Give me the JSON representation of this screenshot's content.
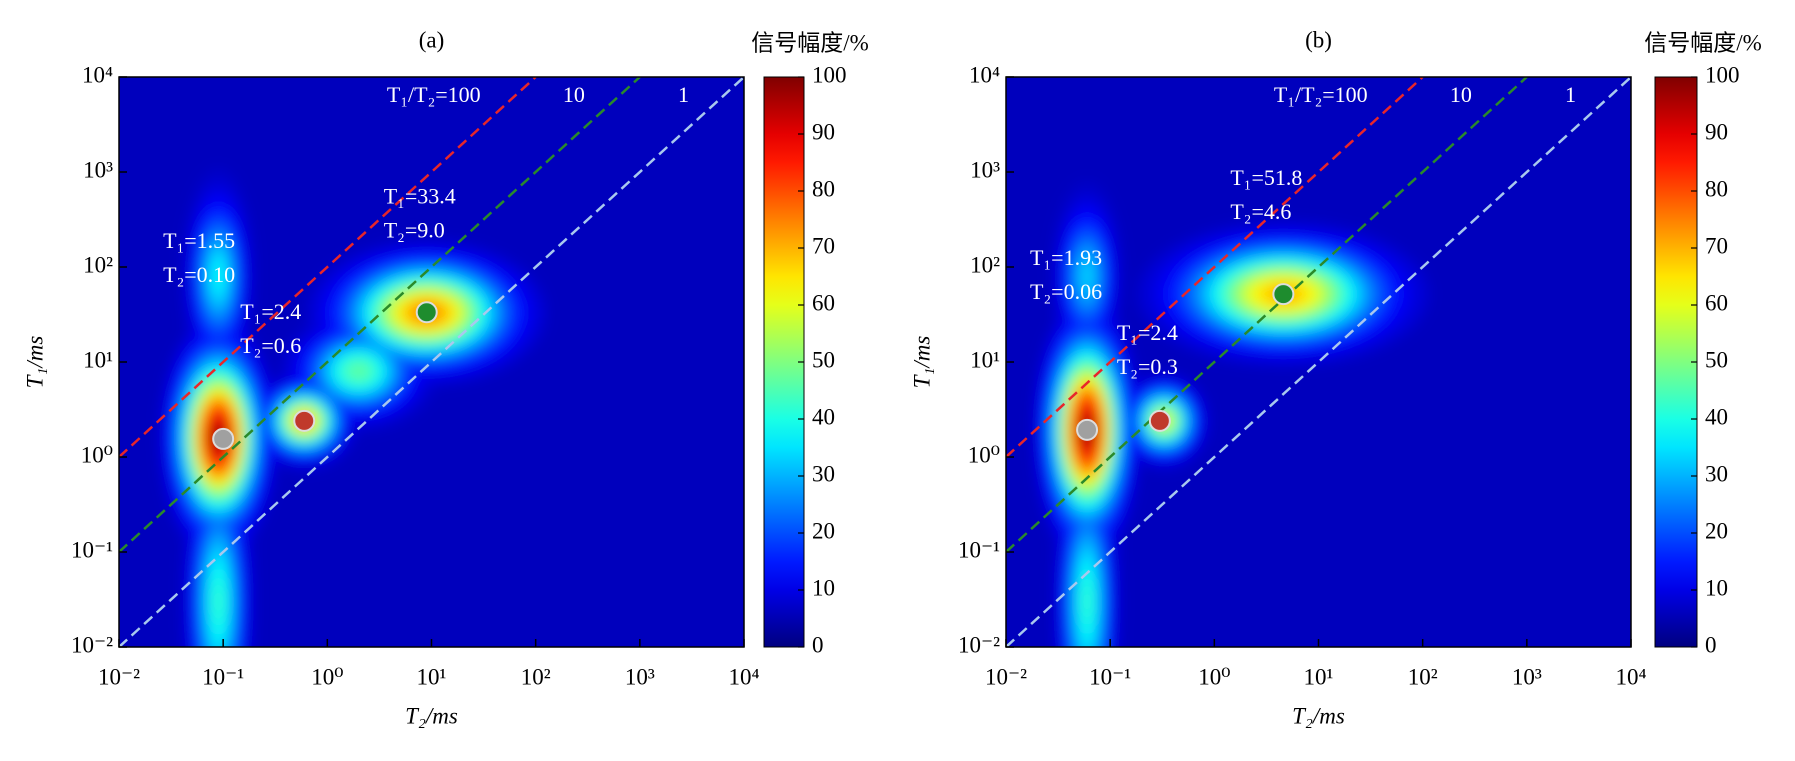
{
  "chart_data": [
    {
      "type": "heatmap",
      "title": "(a)",
      "xlabel": "T₂/ms",
      "ylabel": "T₁/ms",
      "xscale": "log",
      "yscale": "log",
      "xlim": [
        0.01,
        10000
      ],
      "ylim": [
        0.01,
        10000
      ],
      "xticks": [
        {
          "value": 0.01,
          "label": "10⁻²"
        },
        {
          "value": 0.1,
          "label": "10⁻¹"
        },
        {
          "value": 1,
          "label": "10⁰"
        },
        {
          "value": 10,
          "label": "10¹"
        },
        {
          "value": 100,
          "label": "10²"
        },
        {
          "value": 1000,
          "label": "10³"
        },
        {
          "value": 10000,
          "label": "10⁴"
        }
      ],
      "yticks": [
        {
          "value": 0.01,
          "label": "10⁻²"
        },
        {
          "value": 0.1,
          "label": "10⁻¹"
        },
        {
          "value": 1,
          "label": "10⁰"
        },
        {
          "value": 10,
          "label": "10¹"
        },
        {
          "value": 100,
          "label": "10²"
        },
        {
          "value": 1000,
          "label": "10³"
        },
        {
          "value": 10000,
          "label": "10⁴"
        }
      ],
      "colorbar": {
        "title": "信号幅度/%",
        "colormap": "jet",
        "clim": [
          0,
          100
        ],
        "ticks": [
          0,
          10,
          20,
          30,
          40,
          50,
          60,
          70,
          80,
          90,
          100
        ]
      },
      "peaks": [
        {
          "t2": 0.09,
          "t1": 0.03,
          "amplitude": 40,
          "sigma_t2": 0.14,
          "sigma_t1": 0.7
        },
        {
          "t2": 0.09,
          "t1": 80,
          "amplitude": 35,
          "sigma_t2": 0.14,
          "sigma_t1": 0.45
        },
        {
          "t2": 0.09,
          "t1": 1.6,
          "amplitude": 100,
          "sigma_t2": 0.22,
          "sigma_t1": 0.5
        },
        {
          "t2": 0.6,
          "t1": 2.4,
          "amplitude": 70,
          "sigma_t2": 0.2,
          "sigma_t1": 0.2
        },
        {
          "t2": 2,
          "t1": 8,
          "amplitude": 45,
          "sigma_t2": 0.3,
          "sigma_t1": 0.25
        },
        {
          "t2": 9,
          "t1": 33,
          "amplitude": 75,
          "sigma_t2": 0.45,
          "sigma_t1": 0.3
        }
      ],
      "points": [
        {
          "t2": 0.1,
          "t1": 1.55,
          "color": "#a0a0a0",
          "labels": [
            "T₁=1.55",
            "T₂=0.10"
          ]
        },
        {
          "t2": 0.6,
          "t1": 2.4,
          "color": "#c0392b",
          "labels": [
            "T₁=2.4",
            "T₂=0.6"
          ]
        },
        {
          "t2": 9.0,
          "t1": 33.4,
          "color": "#1e8c2e",
          "labels": [
            "T₁=33.4",
            "T₂=9.0"
          ]
        }
      ],
      "ratio_lines": [
        {
          "ratio": 100,
          "label": "T₁/T₂=100",
          "color": "#e8262a"
        },
        {
          "ratio": 10,
          "label": "10",
          "color": "#2a8a2a"
        },
        {
          "ratio": 1,
          "label": "1",
          "color": "#a9c8ee"
        }
      ]
    },
    {
      "type": "heatmap",
      "title": "(b)",
      "xlabel": "T₂/ms",
      "ylabel": "T₁/ms",
      "xscale": "log",
      "yscale": "log",
      "xlim": [
        0.01,
        10000
      ],
      "ylim": [
        0.01,
        10000
      ],
      "xticks": [
        {
          "value": 0.01,
          "label": "10⁻²"
        },
        {
          "value": 0.1,
          "label": "10⁻¹"
        },
        {
          "value": 1,
          "label": "10⁰"
        },
        {
          "value": 10,
          "label": "10¹"
        },
        {
          "value": 100,
          "label": "10²"
        },
        {
          "value": 1000,
          "label": "10³"
        },
        {
          "value": 10000,
          "label": "10⁴"
        }
      ],
      "yticks": [
        {
          "value": 0.01,
          "label": "10⁻²"
        },
        {
          "value": 0.1,
          "label": "10⁻¹"
        },
        {
          "value": 1,
          "label": "10⁰"
        },
        {
          "value": 10,
          "label": "10¹"
        },
        {
          "value": 100,
          "label": "10²"
        },
        {
          "value": 1000,
          "label": "10³"
        },
        {
          "value": 10000,
          "label": "10⁴"
        }
      ],
      "colorbar": {
        "title": "信号幅度/%",
        "colormap": "jet",
        "clim": [
          0,
          100
        ],
        "ticks": [
          0,
          10,
          20,
          30,
          40,
          50,
          60,
          70,
          80,
          90,
          100
        ]
      },
      "peaks": [
        {
          "t2": 0.06,
          "t1": 0.03,
          "amplitude": 40,
          "sigma_t2": 0.13,
          "sigma_t1": 0.7
        },
        {
          "t2": 0.06,
          "t1": 80,
          "amplitude": 30,
          "sigma_t2": 0.14,
          "sigma_t1": 0.4
        },
        {
          "t2": 0.06,
          "t1": 1.9,
          "amplitude": 100,
          "sigma_t2": 0.2,
          "sigma_t1": 0.55
        },
        {
          "t2": 0.33,
          "t1": 2.4,
          "amplitude": 60,
          "sigma_t2": 0.17,
          "sigma_t1": 0.2
        },
        {
          "t2": 4.6,
          "t1": 52,
          "amplitude": 70,
          "sigma_t2": 0.55,
          "sigma_t1": 0.3
        }
      ],
      "points": [
        {
          "t2": 0.06,
          "t1": 1.93,
          "color": "#a0a0a0",
          "labels": [
            "T₁=1.93",
            "T₂=0.06"
          ]
        },
        {
          "t2": 0.3,
          "t1": 2.4,
          "color": "#c0392b",
          "labels": [
            "T₁=2.4",
            "T₂=0.3"
          ]
        },
        {
          "t2": 4.6,
          "t1": 51.8,
          "color": "#1e8c2e",
          "labels": [
            "T₁=51.8",
            "T₂=4.6"
          ]
        }
      ],
      "ratio_lines": [
        {
          "ratio": 100,
          "label": "T₁/T₂=100",
          "color": "#e8262a"
        },
        {
          "ratio": 10,
          "label": "10",
          "color": "#2a8a2a"
        },
        {
          "ratio": 1,
          "label": "1",
          "color": "#a9c8ee"
        }
      ]
    }
  ]
}
